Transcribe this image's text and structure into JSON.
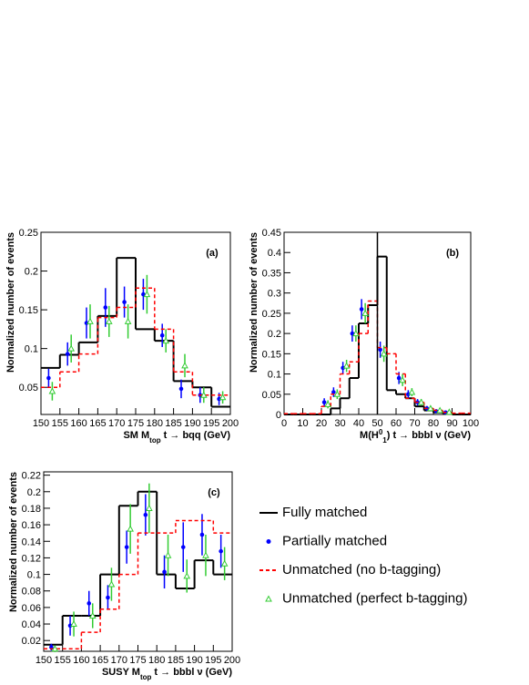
{
  "chart_data": [
    {
      "type": "histogram",
      "label": "(a)",
      "xlabel": [
        {
          "text": "SM M"
        },
        {
          "text": "top",
          "shift": "sub"
        },
        {
          "text": " t → bqq (GeV)"
        }
      ],
      "ylabel": "Normalized number of events",
      "bins": [
        150,
        155,
        160,
        165,
        170,
        175,
        180,
        185,
        190,
        195,
        200
      ],
      "xlim": [
        150,
        200
      ],
      "xticks": [
        150,
        155,
        160,
        165,
        170,
        175,
        180,
        185,
        190,
        195,
        200
      ],
      "ylim": [
        0.015,
        0.25
      ],
      "yticks": [
        0.05,
        0.1,
        0.15,
        0.2,
        0.25
      ],
      "series": [
        {
          "color": "#000000",
          "style": "step",
          "values": [
            0.075,
            0.092,
            0.108,
            0.142,
            0.217,
            0.125,
            0.11,
            0.058,
            0.05,
            0.025
          ]
        },
        {
          "color": "#0000ff",
          "style": "circle",
          "values": [
            0.062,
            0.093,
            0.133,
            0.153,
            0.16,
            0.17,
            0.117,
            0.048,
            0.04,
            0.035
          ],
          "errors": [
            0.012,
            0.015,
            0.02,
            0.025,
            0.02,
            0.02,
            0.015,
            0.012,
            0.01,
            0.008
          ]
        },
        {
          "color": "#ff0000",
          "style": "dashed-step",
          "values": [
            0.05,
            0.07,
            0.093,
            0.14,
            0.153,
            0.178,
            0.125,
            0.07,
            0.04,
            0.04
          ]
        },
        {
          "color": "#33cc33",
          "style": "triangle",
          "values": [
            0.045,
            0.1,
            0.135,
            0.135,
            0.135,
            0.17,
            0.11,
            0.078,
            0.04,
            0.037
          ],
          "errors": [
            0.012,
            0.018,
            0.022,
            0.02,
            0.022,
            0.025,
            0.015,
            0.015,
            0.01,
            0.008
          ]
        }
      ]
    },
    {
      "type": "histogram",
      "label": "(b)",
      "xlabel": [
        {
          "text": "M(H"
        },
        {
          "text": "0",
          "shift": "sup"
        },
        {
          "text": "1",
          "shift": "sub"
        },
        {
          "text": ") t → bbbl ν (GeV)"
        }
      ],
      "ylabel": "Normalized number of events",
      "bins": [
        0,
        5,
        10,
        15,
        20,
        25,
        30,
        35,
        40,
        45,
        50,
        55,
        60,
        65,
        70,
        75,
        80,
        85,
        90,
        95,
        100
      ],
      "xlim": [
        0,
        100
      ],
      "xticks": [
        0,
        10,
        20,
        30,
        40,
        50,
        60,
        70,
        80,
        90,
        100
      ],
      "ylim": [
        0,
        0.45
      ],
      "yticks": [
        0,
        0.05,
        0.1,
        0.15,
        0.2,
        0.25,
        0.3,
        0.35,
        0.4,
        0.45
      ],
      "vline": 50,
      "series": [
        {
          "color": "#000000",
          "style": "step",
          "values": [
            0,
            0,
            0,
            0,
            0,
            0.015,
            0.04,
            0.09,
            0.225,
            0.27,
            0.39,
            0.06,
            0.05,
            0.04,
            0.02,
            0.01,
            0.005,
            0.002,
            0,
            0
          ]
        },
        {
          "color": "#0000ff",
          "style": "circle",
          "values": [
            null,
            null,
            null,
            null,
            0.03,
            0.055,
            0.115,
            0.2,
            0.26,
            null,
            0.16,
            null,
            0.09,
            0.05,
            0.03,
            0.015,
            0.008,
            0.005,
            null,
            null
          ],
          "errors": [
            null,
            null,
            null,
            null,
            0.01,
            0.012,
            0.015,
            0.02,
            0.025,
            null,
            0.02,
            null,
            0.015,
            0.01,
            0.008,
            0.006,
            0.004,
            0.003,
            null,
            null
          ]
        },
        {
          "color": "#ff0000",
          "style": "dashed-step",
          "values": [
            0.002,
            0.002,
            0.002,
            0.002,
            0.02,
            0.05,
            0.1,
            0.13,
            0.2,
            0.28,
            0.165,
            0.15,
            0.1,
            0.04,
            0.03,
            0.015,
            0.01,
            0.005,
            0.003,
            0.003
          ]
        },
        {
          "color": "#33cc33",
          "style": "triangle",
          "values": [
            null,
            null,
            null,
            null,
            0.025,
            0.05,
            0.12,
            0.2,
            0.25,
            null,
            0.15,
            null,
            0.085,
            0.055,
            0.03,
            0.015,
            0.01,
            0.006,
            null,
            null
          ],
          "errors": [
            null,
            null,
            null,
            null,
            0.01,
            0.012,
            0.015,
            0.02,
            0.025,
            null,
            0.02,
            null,
            0.015,
            0.01,
            0.008,
            0.006,
            0.004,
            0.003,
            null,
            null
          ]
        }
      ]
    },
    {
      "type": "histogram",
      "label": "(c)",
      "xlabel": [
        {
          "text": "SUSY M"
        },
        {
          "text": "top",
          "shift": "sub"
        },
        {
          "text": " t → bbbl ν (GeV)"
        }
      ],
      "ylabel": "Normalized number of events",
      "bins": [
        150,
        155,
        160,
        165,
        170,
        175,
        180,
        185,
        190,
        195,
        200
      ],
      "xlim": [
        150,
        200
      ],
      "xticks": [
        150,
        155,
        160,
        165,
        170,
        175,
        180,
        185,
        190,
        195,
        200
      ],
      "ylim": [
        0.007,
        0.224
      ],
      "yticks": [
        0.02,
        0.04,
        0.06,
        0.08,
        0.1,
        0.12,
        0.14,
        0.16,
        0.18,
        0.2,
        0.22
      ],
      "series": [
        {
          "color": "#000000",
          "style": "step",
          "values": [
            0.015,
            0.05,
            0.05,
            0.1,
            0.183,
            0.2,
            0.1,
            0.083,
            0.117,
            0.1
          ]
        },
        {
          "color": "#0000ff",
          "style": "circle",
          "values": [
            0.012,
            0.038,
            0.065,
            0.072,
            0.133,
            0.172,
            0.103,
            0.133,
            0.148,
            0.128
          ],
          "errors": [
            0.004,
            0.012,
            0.015,
            0.015,
            0.02,
            0.025,
            0.02,
            0.03,
            0.025,
            0.02
          ]
        },
        {
          "color": "#ff0000",
          "style": "dashed-step",
          "values": [
            0.01,
            0.01,
            0.03,
            0.058,
            0.1,
            0.15,
            0.15,
            0.165,
            0.165,
            0.15
          ]
        },
        {
          "color": "#33cc33",
          "style": "triangle",
          "values": [
            0.01,
            0.04,
            0.05,
            0.088,
            0.155,
            0.18,
            0.123,
            0.098,
            0.123,
            0.113
          ],
          "errors": [
            0.004,
            0.015,
            0.015,
            0.02,
            0.03,
            0.03,
            0.025,
            0.02,
            0.025,
            0.02
          ]
        }
      ]
    }
  ],
  "legend": [
    "Fully matched",
    "Partially matched",
    "Unmatched (no b-tagging)",
    "Unmatched (perfect b-tagging)"
  ]
}
